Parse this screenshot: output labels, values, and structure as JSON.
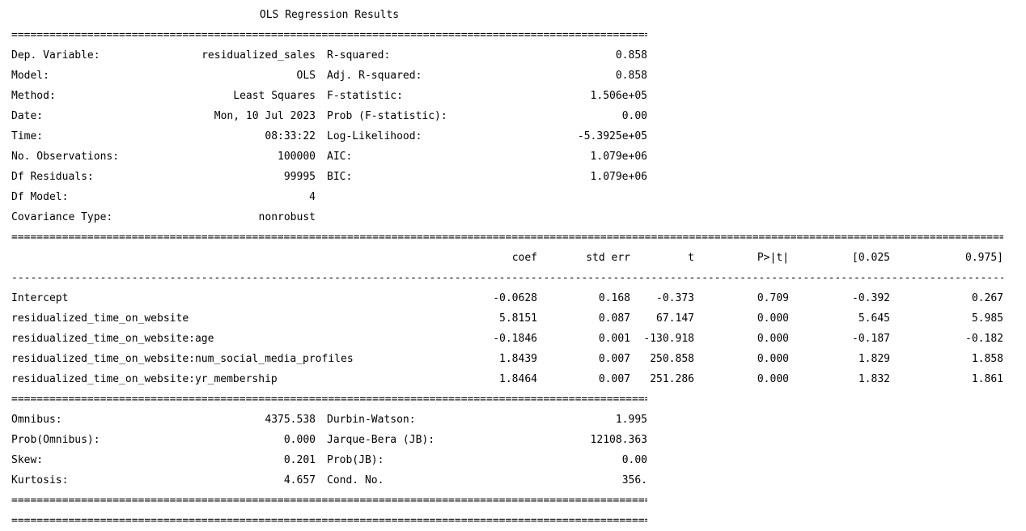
{
  "title": "OLS Regression Results",
  "separators": {
    "eq": "==========================================================================================================================================================================",
    "dash": "------------------------------------------------------------------------------------------------------------------------------------------------------------------------"
  },
  "summary": {
    "left": [
      {
        "label": "Dep. Variable:",
        "value": "residualized_sales"
      },
      {
        "label": "Model:",
        "value": "OLS"
      },
      {
        "label": "Method:",
        "value": "Least Squares"
      },
      {
        "label": "Date:",
        "value": "Mon, 10 Jul 2023"
      },
      {
        "label": "Time:",
        "value": "08:33:22"
      },
      {
        "label": "No. Observations:",
        "value": "100000"
      },
      {
        "label": "Df Residuals:",
        "value": "99995"
      },
      {
        "label": "Df Model:",
        "value": "4"
      },
      {
        "label": "Covariance Type:",
        "value": "nonrobust"
      }
    ],
    "right": [
      {
        "label": "R-squared:",
        "value": "0.858"
      },
      {
        "label": "Adj. R-squared:",
        "value": "0.858"
      },
      {
        "label": "F-statistic:",
        "value": "1.506e+05"
      },
      {
        "label": "Prob (F-statistic):",
        "value": "0.00"
      },
      {
        "label": "Log-Likelihood:",
        "value": "-5.3925e+05"
      },
      {
        "label": "AIC:",
        "value": "1.079e+06"
      },
      {
        "label": "BIC:",
        "value": "1.079e+06"
      },
      {
        "label": "",
        "value": ""
      },
      {
        "label": "",
        "value": ""
      }
    ]
  },
  "coefficients": {
    "headers": {
      "coef": "coef",
      "std_err": "std err",
      "t": "t",
      "p": "P>|t|",
      "ci_low": "[0.025",
      "ci_high": "0.975]"
    },
    "rows": [
      {
        "name": "Intercept",
        "coef": "-0.0628",
        "std_err": "0.168",
        "t": "-0.373",
        "p": "0.709",
        "ci_low": "-0.392",
        "ci_high": "0.267"
      },
      {
        "name": "residualized_time_on_website",
        "coef": "5.8151",
        "std_err": "0.087",
        "t": "67.147",
        "p": "0.000",
        "ci_low": "5.645",
        "ci_high": "5.985"
      },
      {
        "name": "residualized_time_on_website:age",
        "coef": "-0.1846",
        "std_err": "0.001",
        "t": "-130.918",
        "p": "0.000",
        "ci_low": "-0.187",
        "ci_high": "-0.182"
      },
      {
        "name": "residualized_time_on_website:num_social_media_profiles",
        "coef": "1.8439",
        "std_err": "0.007",
        "t": "250.858",
        "p": "0.000",
        "ci_low": "1.829",
        "ci_high": "1.858"
      },
      {
        "name": "residualized_time_on_website:yr_membership",
        "coef": "1.8464",
        "std_err": "0.007",
        "t": "251.286",
        "p": "0.000",
        "ci_low": "1.832",
        "ci_high": "1.861"
      }
    ]
  },
  "diagnostics": {
    "left": [
      {
        "label": "Omnibus:",
        "value": "4375.538"
      },
      {
        "label": "Prob(Omnibus):",
        "value": "0.000"
      },
      {
        "label": "Skew:",
        "value": "0.201"
      },
      {
        "label": "Kurtosis:",
        "value": "4.657"
      }
    ],
    "right": [
      {
        "label": "Durbin-Watson:",
        "value": "1.995"
      },
      {
        "label": "Jarque-Bera (JB):",
        "value": "12108.363"
      },
      {
        "label": "Prob(JB):",
        "value": "0.00"
      },
      {
        "label": "Cond. No.",
        "value": "356."
      }
    ]
  }
}
